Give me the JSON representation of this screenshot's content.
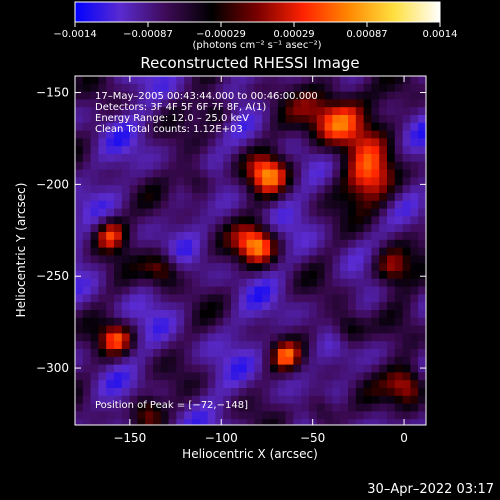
{
  "colorbar": {
    "ticks": [
      "−0.0014",
      "−0.00087",
      "−0.00029",
      "0.00029",
      "0.00087",
      "0.0014"
    ],
    "unit": "(photons cm⁻² s⁻¹ asec⁻²)",
    "stops": [
      "#0000ff",
      "#5a2bd0",
      "#3d0a55",
      "#000000",
      "#7a0000",
      "#ff2200",
      "#ff8800",
      "#ffe040",
      "#ffffff"
    ]
  },
  "title": "Reconstructed RHESSI Image",
  "annotations": {
    "time": "17–May–2005 00:43:44.000 to 00:46:00.000",
    "detectors": "Detectors: 3F 4F 5F 6F 7F 8F, A(1)",
    "energy": "Energy Range: 12.0 – 25.0 keV",
    "algorithm": "Clean    Total counts: 1.12E+03",
    "peak": "Position of Peak = [−72,−148]"
  },
  "axes": {
    "xlabel": "Heliocentric X (arcsec)",
    "ylabel": "Heliocentric Y (arcsec)",
    "xticks": [
      "−150",
      "−100",
      "−50",
      "0"
    ],
    "yticks": [
      "−150",
      "−200",
      "−250",
      "−300"
    ],
    "xlim": [
      -180,
      12
    ],
    "ylim": [
      -331,
      -141
    ]
  },
  "timestamp": "30–Apr–2022 03:17"
}
